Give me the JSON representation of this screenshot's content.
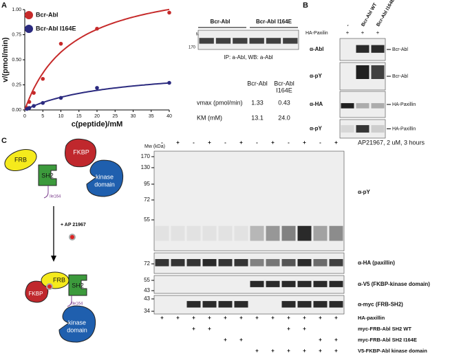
{
  "panels": [
    "A",
    "B",
    "C"
  ],
  "chart_data": {
    "type": "scatter",
    "xlabel": "c(peptide)/mM",
    "ylabel": "v/(pmol/min)",
    "x": [
      0.625,
      1.25,
      2.5,
      5,
      10,
      20,
      40
    ],
    "series": [
      {
        "name": "Bcr-Abl",
        "color": "#c62a2a",
        "values": [
          0.02,
          0.08,
          0.17,
          0.31,
          0.66,
          0.81,
          0.97
        ]
      },
      {
        "name": "Bcr-Abl I164E",
        "color": "#2b2a7f",
        "values": [
          0.01,
          0.02,
          0.04,
          0.07,
          0.12,
          0.22,
          0.27
        ]
      }
    ],
    "xlim": [
      0,
      40
    ],
    "xticks": [
      0,
      5,
      10,
      15,
      20,
      25,
      30,
      35,
      40
    ],
    "ylim": [
      0,
      1
    ],
    "yticks": [
      {
        "value": 0,
        "label": "0.00"
      },
      {
        "value": 0.25,
        "label": "0.25"
      },
      {
        "value": 0.5,
        "label": "0.50"
      },
      {
        "value": 0.75,
        "label": "0.75"
      },
      {
        "value": 1,
        "label": "1.00"
      }
    ]
  },
  "kinetics": {
    "headers": [
      [
        "Bcr-Abl"
      ],
      [
        "Bcr-Abl",
        "I164E"
      ]
    ],
    "rows": [
      {
        "label": "vmax (pmol/min)",
        "values": [
          1.33,
          0.43
        ]
      },
      {
        "label": "KM (mM)",
        "values": [
          13.1,
          24
        ],
        "value_labels": [
          "13.1",
          "24.0"
        ]
      }
    ]
  },
  "blot_a": {
    "groups": [
      "Bcr-Abl",
      "Bcr-Abl I164E"
    ],
    "mw_label": "Mw/kDa",
    "mw": [
      170
    ],
    "caption": "IP: a-Abl, WB: a-Abl"
  },
  "blot_b": {
    "lanes": [
      "-",
      "Bcr-Abl WT",
      "Bcr-Abl I164E"
    ],
    "treatment": {
      "label": "HA-Paxilin",
      "marks": [
        "+",
        "+",
        "+"
      ]
    },
    "blots": [
      {
        "antibody": "α-Abl",
        "band": "Bcr-Abl"
      },
      {
        "antibody": "α-pY",
        "band": "Bcr-Abl"
      },
      {
        "antibody": "α-HA",
        "band": "HA-Paxillin"
      },
      {
        "antibody": "α-pY",
        "band": "HA-Paxillin"
      }
    ]
  },
  "diagram_c": {
    "before": {
      "frb": "FRB",
      "fkbp": "FKBP",
      "sh2": "SH2",
      "kinase": [
        "kinase",
        "domain"
      ],
      "residue": "Ile164"
    },
    "drug": "+ AP 21967",
    "after": {
      "frb": "FRB",
      "fkbp": "FKBP",
      "sh2": "SH2",
      "kinase": [
        "kinase",
        "domain"
      ],
      "residue": "Ile164"
    }
  },
  "blot_c": {
    "mw_label": "Mw (kDa)",
    "drug": {
      "label": "AP21967, 2 uM, 3 hours",
      "marks": [
        "-",
        "+",
        "-",
        "+",
        "-",
        "+",
        "-",
        "+",
        "-",
        "+",
        "-",
        "+"
      ]
    },
    "blots": [
      {
        "antibody": "α-pY",
        "mw": [
          170,
          130,
          95,
          72,
          55
        ]
      },
      {
        "antibody": "α-HA (paxillin)",
        "mw": [
          72
        ]
      },
      {
        "antibody": "α-V5 (FKBP-kinase domain)",
        "mw": [
          55,
          43
        ]
      },
      {
        "antibody": "α-myc (FRB-SH2)",
        "mw": [
          43,
          34
        ]
      }
    ],
    "conditions": [
      {
        "label": "HA-paxillin",
        "marks": [
          "+",
          "+",
          "+",
          "+",
          "+",
          "+",
          "+",
          "+",
          "+",
          "+",
          "+",
          "+"
        ]
      },
      {
        "label": "myc-FRB-Abl SH2 WT",
        "marks": [
          null,
          null,
          "+",
          "+",
          null,
          null,
          null,
          null,
          "+",
          "+",
          null,
          null
        ]
      },
      {
        "label": "myc-FRB-Abl SH2 I164E",
        "marks": [
          null,
          null,
          null,
          null,
          "+",
          "+",
          null,
          null,
          null,
          null,
          "+",
          "+"
        ]
      },
      {
        "label": "V5-FKBP-Abl kinase domain",
        "marks": [
          null,
          null,
          null,
          null,
          null,
          null,
          "+",
          "+",
          "+",
          "+",
          "+",
          "+"
        ]
      }
    ]
  }
}
